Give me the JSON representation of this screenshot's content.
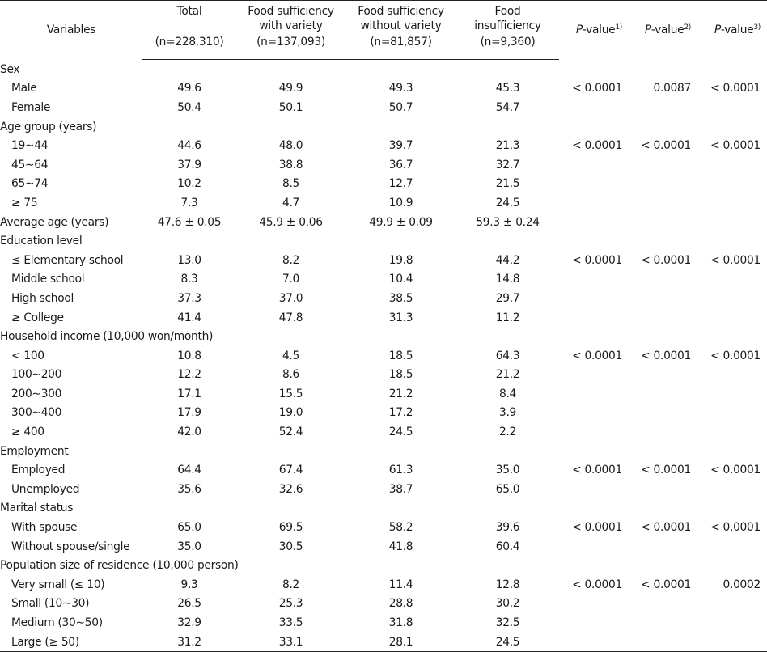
{
  "header": {
    "variables": "Variables",
    "total_label": "Total",
    "total_n": "(n=228,310)",
    "fsv_label_1": "Food sufficiency",
    "fsv_label_2": "with variety",
    "fsv_n": "(n=137,093)",
    "fsw_label_1": "Food sufficiency",
    "fsw_label_2": "without variety",
    "fsw_n": "(n=81,857)",
    "fi_label_1": "Food",
    "fi_label_2": "insufficiency",
    "fi_n": "(n=9,360)",
    "p_italic": "P",
    "p_suffix": "-value",
    "p1_sup": "1)",
    "p2_sup": "2)",
    "p3_sup": "3)"
  },
  "rows": [
    {
      "label": "Sex",
      "sub": false,
      "v": [
        "",
        "",
        "",
        "",
        "",
        "",
        ""
      ]
    },
    {
      "label": "Male",
      "sub": true,
      "v": [
        "49.6",
        "49.9",
        "49.3",
        "45.3",
        "< 0.0001",
        "0.0087",
        "< 0.0001"
      ]
    },
    {
      "label": "Female",
      "sub": true,
      "v": [
        "50.4",
        "50.1",
        "50.7",
        "54.7",
        "",
        "",
        ""
      ]
    },
    {
      "label": "Age group (years)",
      "sub": false,
      "v": [
        "",
        "",
        "",
        "",
        "",
        "",
        ""
      ]
    },
    {
      "label": "19∼44",
      "sub": true,
      "v": [
        "44.6",
        "48.0",
        "39.7",
        "21.3",
        "< 0.0001",
        "< 0.0001",
        "< 0.0001"
      ]
    },
    {
      "label": "45∼64",
      "sub": true,
      "v": [
        "37.9",
        "38.8",
        "36.7",
        "32.7",
        "",
        "",
        ""
      ]
    },
    {
      "label": "65∼74",
      "sub": true,
      "v": [
        "10.2",
        "8.5",
        "12.7",
        "21.5",
        "",
        "",
        ""
      ]
    },
    {
      "label": "≥ 75",
      "sub": true,
      "v": [
        "7.3",
        "4.7",
        "10.9",
        "24.5",
        "",
        "",
        ""
      ]
    },
    {
      "label": "Average age (years)",
      "sub": false,
      "v": [
        "47.6 ± 0.05",
        "45.9 ± 0.06",
        "49.9 ± 0.09",
        "59.3 ± 0.24",
        "",
        "",
        ""
      ]
    },
    {
      "label": "Education level",
      "sub": false,
      "v": [
        "",
        "",
        "",
        "",
        "",
        "",
        ""
      ]
    },
    {
      "label": "≤ Elementary school",
      "sub": true,
      "v": [
        "13.0",
        "8.2",
        "19.8",
        "44.2",
        "< 0.0001",
        "< 0.0001",
        "< 0.0001"
      ]
    },
    {
      "label": "Middle school",
      "sub": true,
      "v": [
        "8.3",
        "7.0",
        "10.4",
        "14.8",
        "",
        "",
        ""
      ]
    },
    {
      "label": "High school",
      "sub": true,
      "v": [
        "37.3",
        "37.0",
        "38.5",
        "29.7",
        "",
        "",
        ""
      ]
    },
    {
      "label": "≥ College",
      "sub": true,
      "v": [
        "41.4",
        "47.8",
        "31.3",
        "11.2",
        "",
        "",
        ""
      ]
    },
    {
      "label": "Household income (10,000 won/month)",
      "sub": false,
      "v": [
        "",
        "",
        "",
        "",
        "",
        "",
        ""
      ]
    },
    {
      "label": "< 100",
      "sub": true,
      "v": [
        "10.8",
        "4.5",
        "18.5",
        "64.3",
        "< 0.0001",
        "< 0.0001",
        "< 0.0001"
      ]
    },
    {
      "label": "100∼200",
      "sub": true,
      "v": [
        "12.2",
        "8.6",
        "18.5",
        "21.2",
        "",
        "",
        ""
      ]
    },
    {
      "label": "200∼300",
      "sub": true,
      "v": [
        "17.1",
        "15.5",
        "21.2",
        "8.4",
        "",
        "",
        ""
      ]
    },
    {
      "label": "300∼400",
      "sub": true,
      "v": [
        "17.9",
        "19.0",
        "17.2",
        "3.9",
        "",
        "",
        ""
      ]
    },
    {
      "label": "≥ 400",
      "sub": true,
      "v": [
        "42.0",
        "52.4",
        "24.5",
        "2.2",
        "",
        "",
        ""
      ]
    },
    {
      "label": "Employment",
      "sub": false,
      "v": [
        "",
        "",
        "",
        "",
        "",
        "",
        ""
      ]
    },
    {
      "label": "Employed",
      "sub": true,
      "v": [
        "64.4",
        "67.4",
        "61.3",
        "35.0",
        "< 0.0001",
        "< 0.0001",
        "< 0.0001"
      ]
    },
    {
      "label": "Unemployed",
      "sub": true,
      "v": [
        "35.6",
        "32.6",
        "38.7",
        "65.0",
        "",
        "",
        ""
      ]
    },
    {
      "label": "Marital status",
      "sub": false,
      "v": [
        "",
        "",
        "",
        "",
        "",
        "",
        ""
      ]
    },
    {
      "label": "With spouse",
      "sub": true,
      "v": [
        "65.0",
        "69.5",
        "58.2",
        "39.6",
        "< 0.0001",
        "< 0.0001",
        "< 0.0001"
      ]
    },
    {
      "label": "Without spouse/single",
      "sub": true,
      "v": [
        "35.0",
        "30.5",
        "41.8",
        "60.4",
        "",
        "",
        ""
      ]
    },
    {
      "label": "Population size of residence (10,000 person)",
      "sub": false,
      "v": [
        "",
        "",
        "",
        "",
        "",
        "",
        ""
      ]
    },
    {
      "label": "Very small (≤ 10)",
      "sub": true,
      "v": [
        "9.3",
        "8.2",
        "11.4",
        "12.8",
        "< 0.0001",
        "< 0.0001",
        "0.0002"
      ]
    },
    {
      "label": "Small (10∼30)",
      "sub": true,
      "v": [
        "26.5",
        "25.3",
        "28.8",
        "30.2",
        "",
        "",
        ""
      ]
    },
    {
      "label": "Medium (30∼50)",
      "sub": true,
      "v": [
        "32.9",
        "33.5",
        "31.8",
        "32.5",
        "",
        "",
        ""
      ]
    },
    {
      "label": "Large (≥ 50)",
      "sub": true,
      "v": [
        "31.2",
        "33.1",
        "28.1",
        "24.5",
        "",
        "",
        ""
      ]
    }
  ]
}
